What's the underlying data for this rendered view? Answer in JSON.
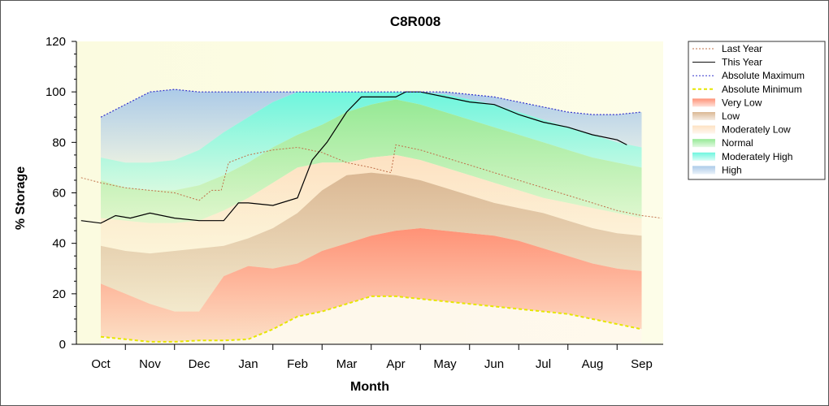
{
  "chart_data": {
    "type": "area",
    "title": "C8R008",
    "xlabel": "Month",
    "ylabel": "% Storage",
    "ylim": [
      0,
      120
    ],
    "yticks": [
      0,
      20,
      40,
      60,
      80,
      100,
      120
    ],
    "categories": [
      "Oct",
      "Nov",
      "Dec",
      "Jan",
      "Feb",
      "Mar",
      "Apr",
      "May",
      "Jun",
      "Jul",
      "Aug",
      "Sep"
    ],
    "grid": false,
    "legend_position": "right",
    "colors": {
      "plot_background": "#fdfde8",
      "last_year": "#c0704a",
      "this_year": "#000000",
      "abs_max": "#3333cc",
      "abs_min": "#e6e600",
      "very_low": "#ff8c70",
      "low": "#d9b48f",
      "moderately_low": "#fde0c0",
      "normal": "#90e890",
      "moderately_high": "#66f5dd",
      "high": "#a8c8e8"
    },
    "bands_x": [
      0.0,
      0.5,
      1.0,
      1.5,
      2.0,
      2.5,
      3.0,
      3.5,
      4.0,
      4.5,
      5.0,
      5.5,
      6.0,
      6.5,
      7.0,
      7.5,
      8.0,
      8.5,
      9.0,
      9.5,
      10.0,
      10.5,
      11.0
    ],
    "bands": {
      "min": [
        3,
        2,
        1,
        1,
        1.5,
        1.5,
        2,
        6,
        11,
        13,
        16,
        19,
        19,
        18,
        17,
        16,
        15,
        14,
        13,
        12,
        10,
        8,
        6
      ],
      "very_low_top": [
        24,
        20,
        16,
        13,
        13,
        27,
        31,
        30,
        32,
        37,
        40,
        43,
        45,
        46,
        45,
        44,
        43,
        41,
        38,
        35,
        32,
        30,
        29
      ],
      "low_top": [
        39,
        37,
        36,
        37,
        38,
        39,
        42,
        46,
        52,
        61,
        67,
        68,
        67,
        65,
        62,
        59,
        56,
        54,
        52,
        49,
        46,
        44,
        43
      ],
      "moderately_low_top": [
        50,
        49,
        48,
        48,
        49,
        53,
        58,
        64,
        70,
        72,
        72,
        74,
        75,
        73,
        70,
        67,
        64,
        61,
        58,
        56,
        54,
        52,
        50
      ],
      "normal_top": [
        65,
        62,
        61,
        61,
        63,
        67,
        72,
        78,
        83,
        87,
        92,
        95,
        97,
        95,
        92,
        89,
        86,
        83,
        80,
        77,
        74,
        72,
        70
      ],
      "moderately_high_top": [
        74,
        72,
        72,
        73,
        77,
        84,
        90,
        96,
        100,
        100,
        100,
        100,
        100,
        100,
        99,
        97,
        95,
        92,
        89,
        86,
        83,
        80,
        78
      ],
      "max": [
        90,
        95,
        100,
        101,
        100,
        100,
        100,
        100,
        100,
        100,
        100,
        100,
        100,
        100,
        100,
        99,
        98,
        96,
        94,
        92,
        91,
        91,
        92
      ]
    },
    "series": [
      {
        "name": "Last Year",
        "x": [
          -0.4,
          0.0,
          0.5,
          1.0,
          1.5,
          2.0,
          2.25,
          2.45,
          2.6,
          3.0,
          3.5,
          4.0,
          4.5,
          5.0,
          5.5,
          5.9,
          6.0,
          6.5,
          7.0,
          7.5,
          8.0,
          8.5,
          9.0,
          9.5,
          10.0,
          10.5,
          11.0,
          11.4
        ],
        "values": [
          66,
          64,
          62,
          61,
          60,
          57,
          61,
          61,
          72,
          75,
          77,
          78,
          76,
          72,
          70,
          68,
          79,
          77,
          74,
          71,
          68,
          65,
          62,
          59,
          56,
          53,
          51,
          50
        ]
      },
      {
        "name": "This Year",
        "x": [
          -0.4,
          0.0,
          0.3,
          0.6,
          1.0,
          1.5,
          2.0,
          2.5,
          2.8,
          3.0,
          3.5,
          4.0,
          4.3,
          4.6,
          5.0,
          5.3,
          5.6,
          6.0,
          6.2,
          6.5,
          7.0,
          7.5,
          8.0,
          8.5,
          9.0,
          9.5,
          10.0,
          10.5,
          10.7
        ],
        "values": [
          49,
          48,
          51,
          50,
          52,
          50,
          49,
          49,
          56,
          56,
          55,
          58,
          73,
          80,
          92,
          98,
          98,
          98,
          100,
          100,
          98,
          96,
          95,
          91,
          88,
          86,
          83,
          81,
          79
        ]
      },
      {
        "name": "Absolute Maximum",
        "x": [
          0.0,
          0.5,
          1.0,
          1.5,
          2.0,
          2.5,
          3.0,
          3.5,
          4.0,
          4.5,
          5.0,
          5.5,
          6.0,
          6.5,
          7.0,
          7.5,
          8.0,
          8.5,
          9.0,
          9.5,
          10.0,
          10.5,
          11.0
        ],
        "values": [
          90,
          95,
          100,
          101,
          100,
          100,
          100,
          100,
          100,
          100,
          100,
          100,
          100,
          100,
          100,
          99,
          98,
          96,
          94,
          92,
          91,
          91,
          92
        ]
      },
      {
        "name": "Absolute Minimum",
        "x": [
          0.0,
          0.5,
          1.0,
          1.5,
          2.0,
          2.5,
          3.0,
          3.5,
          4.0,
          4.5,
          5.0,
          5.5,
          6.0,
          6.5,
          7.0,
          7.5,
          8.0,
          8.5,
          9.0,
          9.5,
          10.0,
          10.5,
          11.0
        ],
        "values": [
          3,
          2,
          1,
          1,
          1.5,
          1.5,
          2,
          6,
          11,
          13,
          16,
          19,
          19,
          18,
          17,
          16,
          15,
          14,
          13,
          12,
          10,
          8,
          6
        ]
      }
    ],
    "legend": [
      {
        "label": "Last Year",
        "kind": "line",
        "color_key": "last_year",
        "dash": "2,2"
      },
      {
        "label": "This Year",
        "kind": "line",
        "color_key": "this_year",
        "dash": ""
      },
      {
        "label": "Absolute Maximum",
        "kind": "line",
        "color_key": "abs_max",
        "dash": "2,2"
      },
      {
        "label": "Absolute Minimum",
        "kind": "line",
        "color_key": "abs_min",
        "dash": "4,3"
      },
      {
        "label": "Very Low",
        "kind": "area",
        "color_key": "very_low"
      },
      {
        "label": "Low",
        "kind": "area",
        "color_key": "low"
      },
      {
        "label": "Moderately Low",
        "kind": "area",
        "color_key": "moderately_low"
      },
      {
        "label": "Normal",
        "kind": "area",
        "color_key": "normal"
      },
      {
        "label": "Moderately High",
        "kind": "area",
        "color_key": "moderately_high"
      },
      {
        "label": "High",
        "kind": "area",
        "color_key": "high"
      }
    ]
  }
}
